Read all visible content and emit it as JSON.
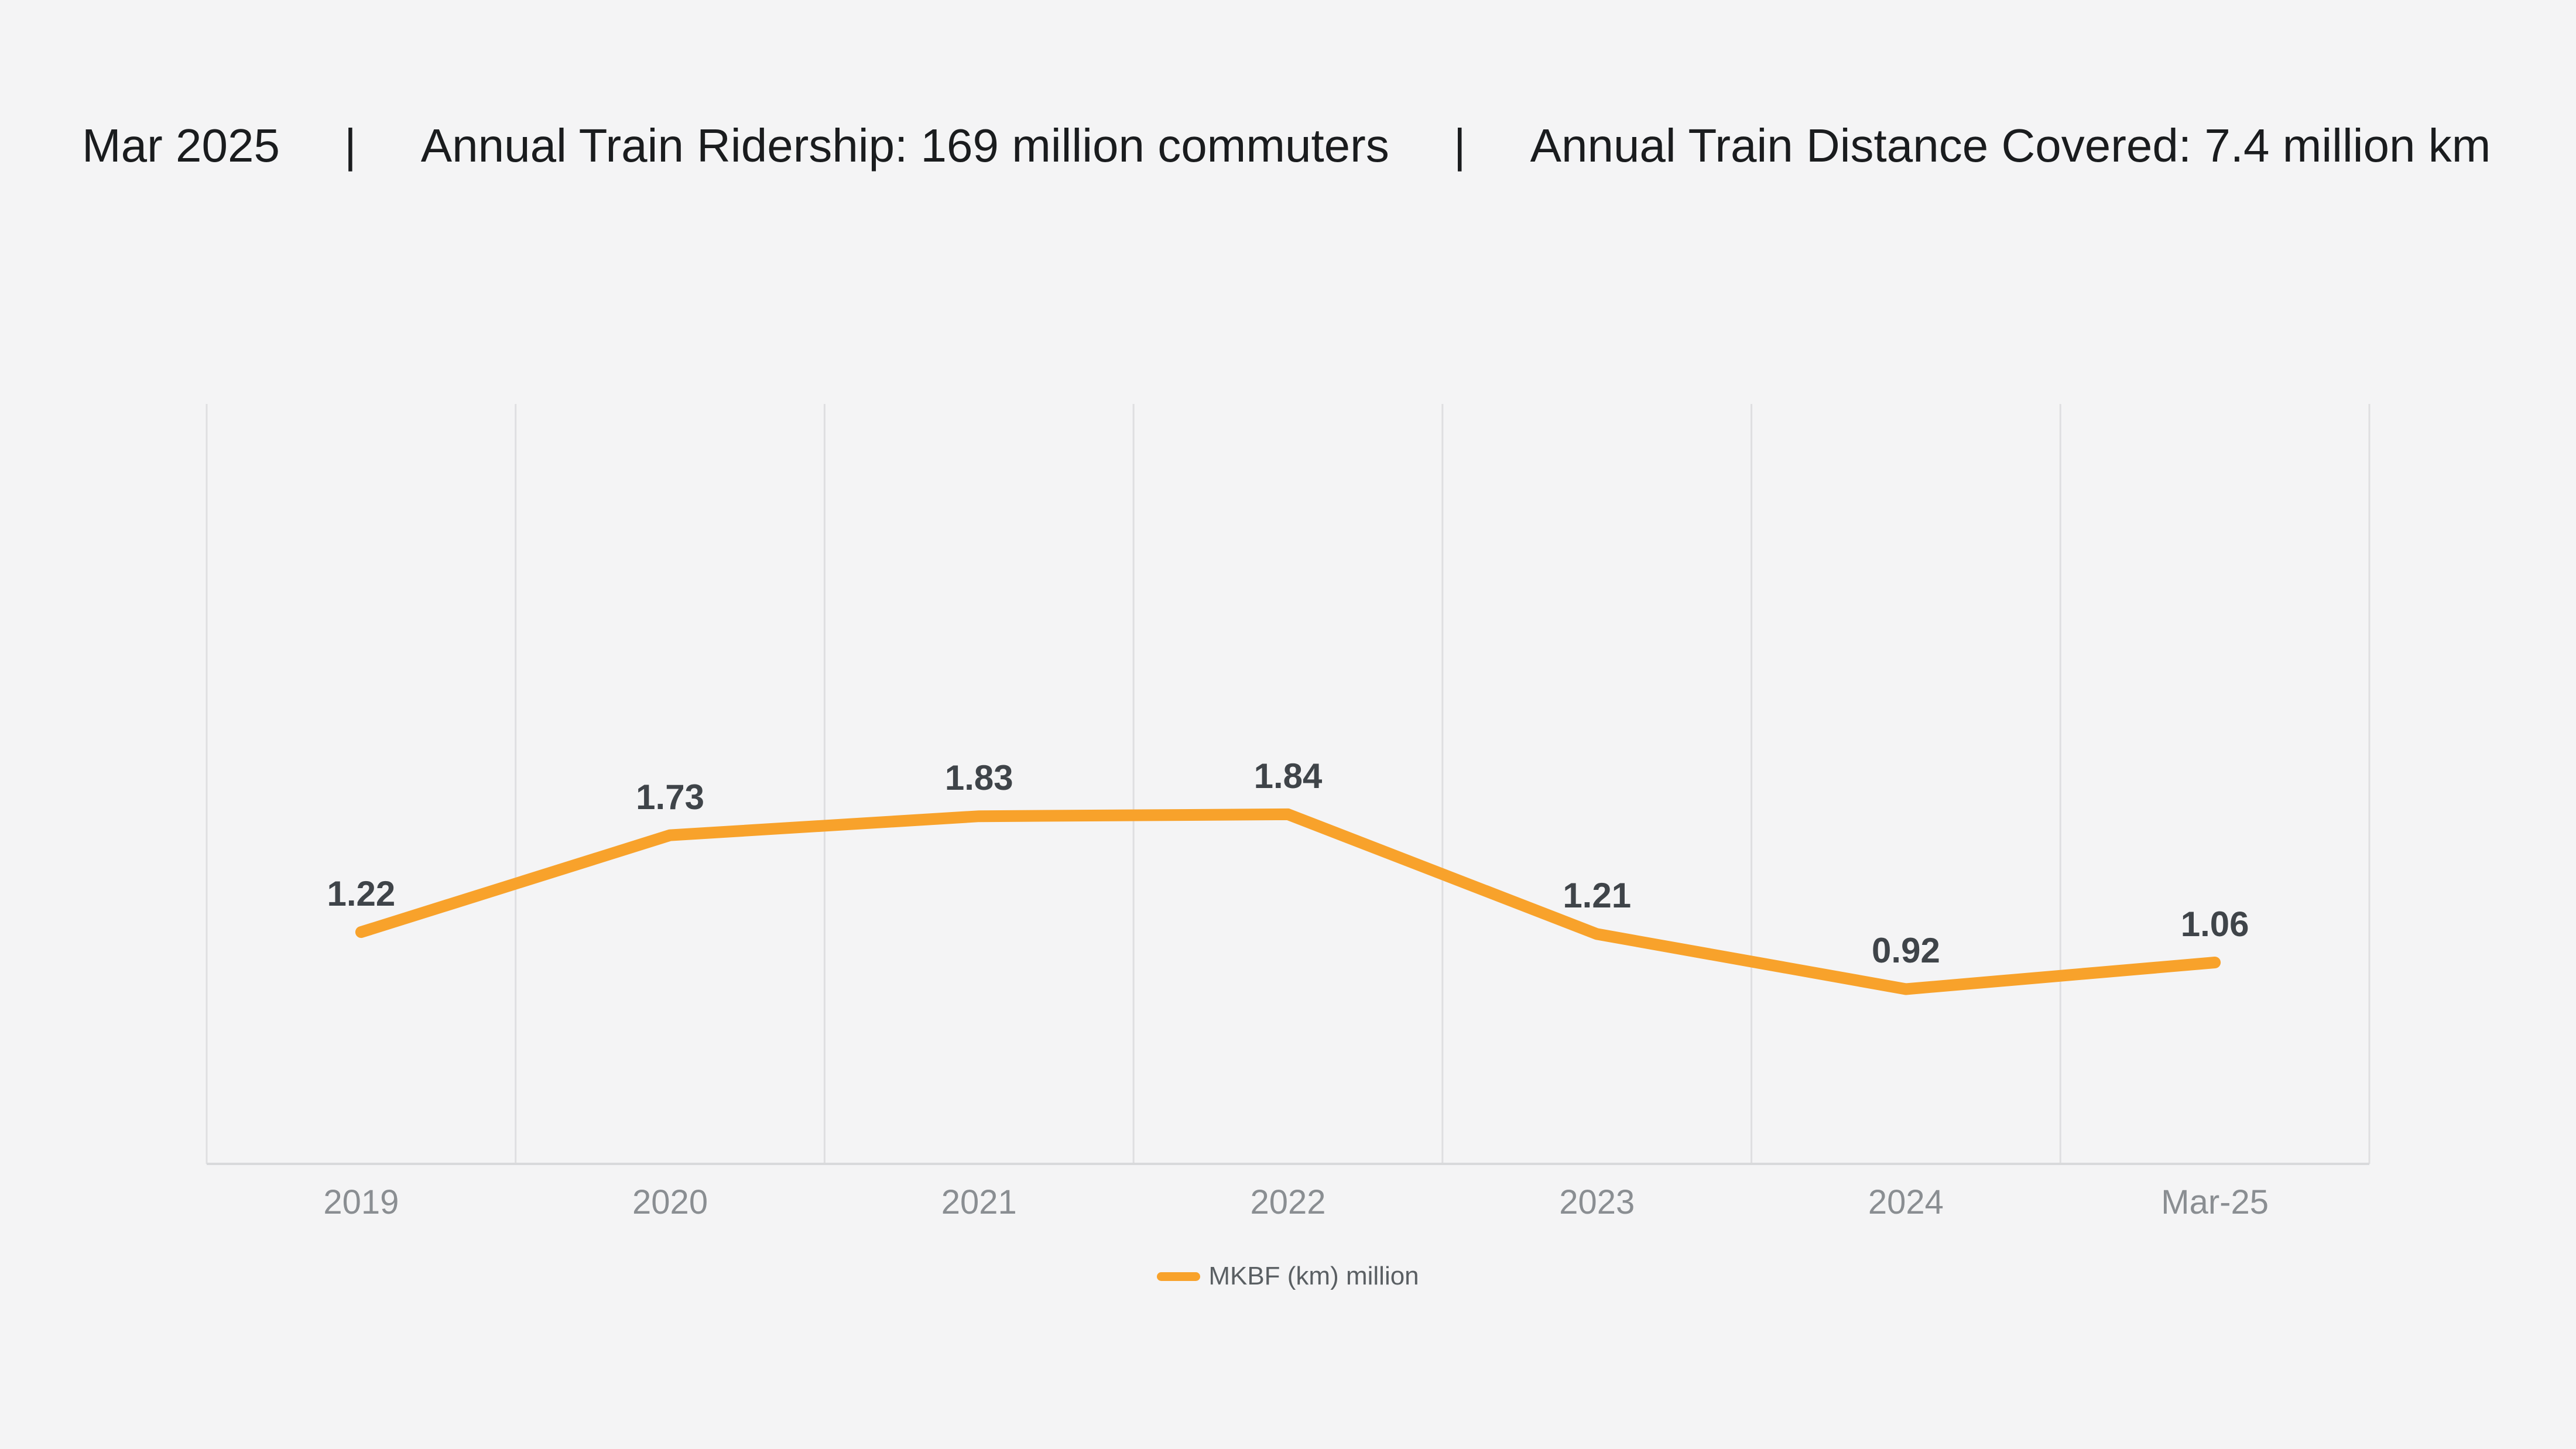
{
  "header": {
    "period": "Mar 2025",
    "separator": "|",
    "ridership": "Annual Train Ridership: 169 million commuters",
    "distance": "Annual Train Distance Covered: 7.4 million km"
  },
  "chart_data": {
    "type": "line",
    "categories": [
      "2019",
      "2020",
      "2021",
      "2022",
      "2023",
      "2024",
      "Mar-25"
    ],
    "series": [
      {
        "name": "MKBF (km) million",
        "values": [
          1.22,
          1.73,
          1.83,
          1.84,
          1.21,
          0.92,
          1.06
        ]
      }
    ],
    "data_labels": [
      "1.22",
      "1.73",
      "1.83",
      "1.84",
      "1.21",
      "0.92",
      "1.06"
    ],
    "title": "",
    "xlabel": "",
    "ylabel": "",
    "ylim": [
      0,
      4
    ],
    "grid": "vertical band boundary lines, bottom axis line only, no y-axis labels",
    "legend_position": "bottom-center",
    "legend_label": "MKBF (km) million"
  },
  "colors": {
    "background": "#F4F4F5",
    "grid_line": "#DFDFE1",
    "axis_line": "#D8D9DB",
    "series_line": "#F8A22B",
    "data_label": "#3F4449",
    "tick_label": "#8A8E92",
    "legend_text": "#5A5F63",
    "header_text": "#1A1C1E"
  }
}
